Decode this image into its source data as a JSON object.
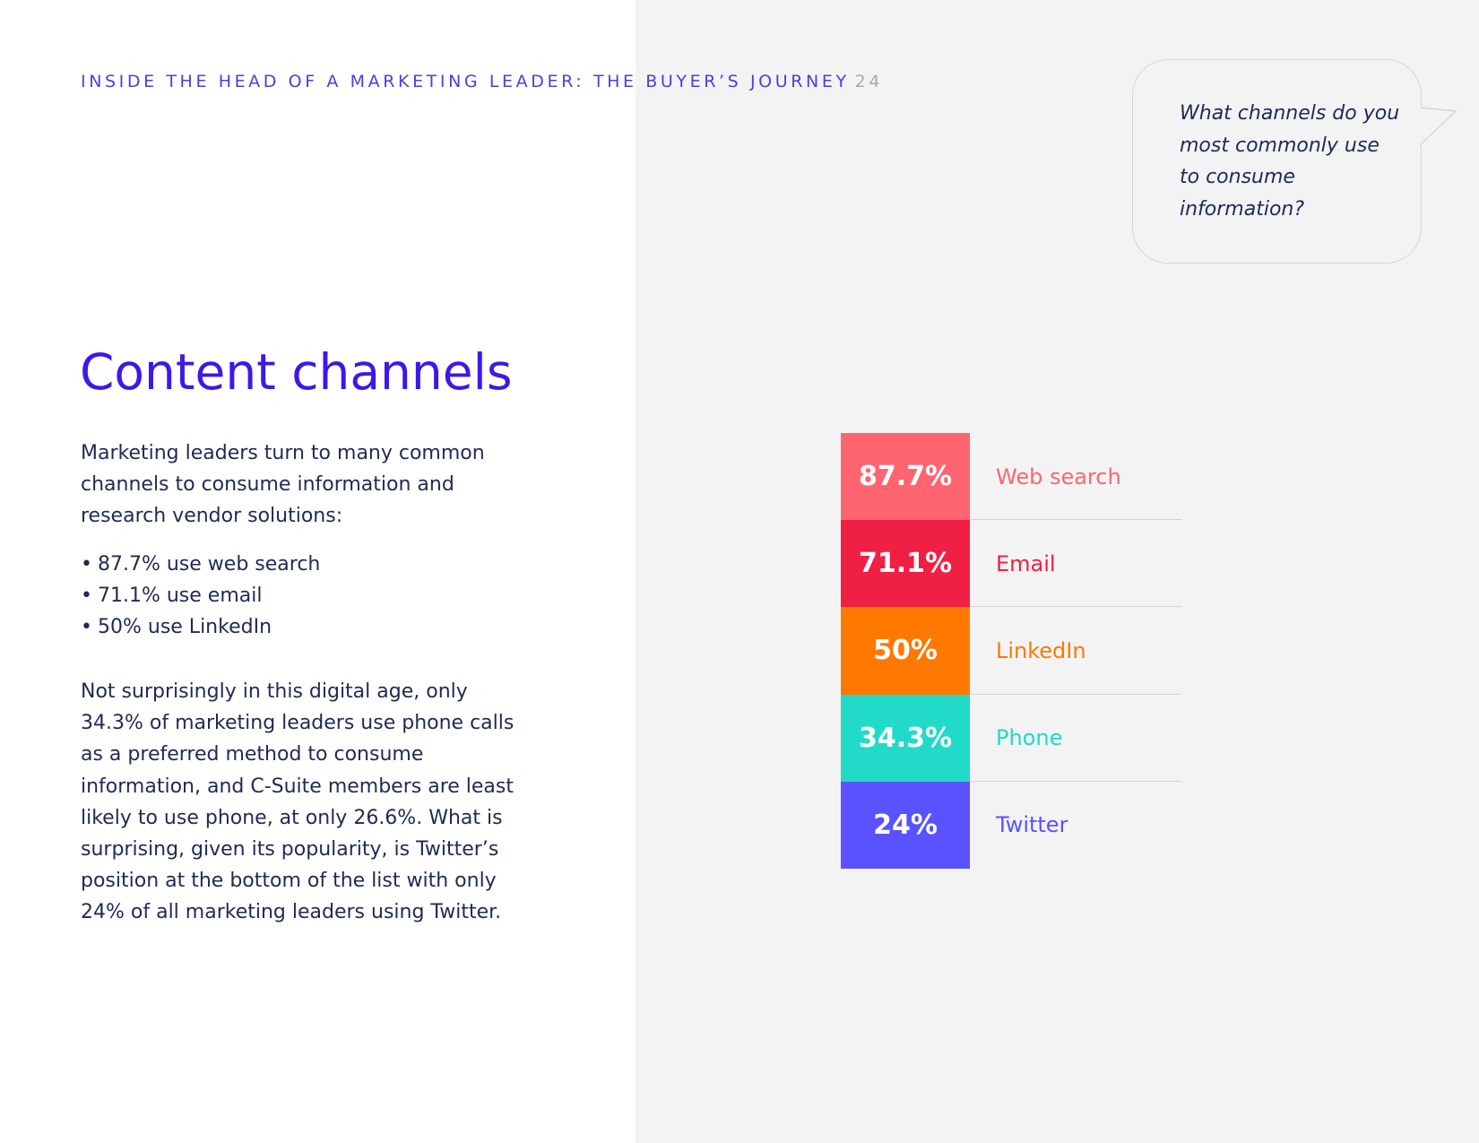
{
  "header": {
    "running_title": "INSIDE THE HEAD OF A MARKETING LEADER: THE BUYER’S JOURNEY",
    "page_number": "24"
  },
  "main": {
    "title": "Content channels",
    "intro": "Marketing leaders turn to many common channels to consume information and research vendor solutions:",
    "bullets": [
      "87.7% use web search",
      "71.1% use email",
      "50% use LinkedIn"
    ],
    "paragraph": "Not surprisingly in this digital age, only 34.3% of marketing leaders use phone calls as a preferred method to consume information, and C-Suite members are least likely to use phone, at only 26.6%. What is surprising, given its popularity, is Twitter’s position at the bottom of the list with only 24% of all marketing leaders using Twitter."
  },
  "bubble": {
    "question": "What channels do you most commonly use to consume information?"
  },
  "chart_data": {
    "type": "table",
    "categories": [
      "Web search",
      "Email",
      "LinkedIn",
      "Phone",
      "Twitter"
    ],
    "values": [
      87.7,
      71.1,
      50,
      34.3,
      24
    ],
    "value_labels": [
      "87.7%",
      "71.1%",
      "50%",
      "34.3%",
      "24%"
    ],
    "colors": [
      "#ff6471",
      "#f01f44",
      "#ff7800",
      "#21dac8",
      "#5a52ff"
    ]
  }
}
